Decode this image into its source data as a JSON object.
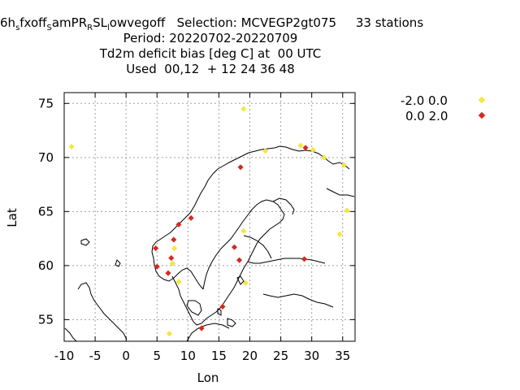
{
  "header": {
    "title_line1_prefix": "6h",
    "title_sub1": "s",
    "title_mid1": "fxoff",
    "title_sub2": "S",
    "title_mid2": "amPR",
    "title_sub3": "R",
    "title_mid3": "SL",
    "title_sub4": "l",
    "title_mid4": "owvegoff   Selection: MCVEGP2gt075     33 stations",
    "period": "Period: 20220702-20220709",
    "parameter": "Td2m deficit bias [deg C] at  00 UTC",
    "used": "Used  00,12  + 12 24 36 48"
  },
  "colors": {
    "low": "#f5e63a",
    "high": "#d42a1e",
    "grid": "#a0a0a0",
    "coast": "#000000"
  },
  "chart_data": {
    "type": "scatter",
    "xlabel": "Lon",
    "ylabel": "Lat",
    "xlim": [
      -10,
      37
    ],
    "ylim": [
      53,
      76
    ],
    "xticks": [
      -10,
      -5,
      0,
      5,
      10,
      15,
      20,
      25,
      30,
      35
    ],
    "yticks": [
      55,
      60,
      65,
      70,
      75
    ],
    "grid": true,
    "legend_position": "top-right",
    "series": [
      {
        "name": "-2.0 0.0",
        "color": "#f5e63a",
        "points": [
          [
            -8.8,
            71.0
          ],
          [
            19.0,
            74.5
          ],
          [
            22.5,
            70.6
          ],
          [
            28.2,
            71.1
          ],
          [
            30.2,
            70.7
          ],
          [
            32.0,
            70.0
          ],
          [
            35.2,
            69.3
          ],
          [
            35.7,
            65.1
          ],
          [
            34.5,
            62.9
          ],
          [
            19.0,
            63.2
          ],
          [
            7.8,
            61.6
          ],
          [
            7.5,
            60.2
          ],
          [
            8.5,
            58.5
          ],
          [
            19.3,
            58.4
          ],
          [
            7.0,
            53.7
          ]
        ]
      },
      {
        "name": "0.0 2.0",
        "color": "#d42a1e",
        "points": [
          [
            18.5,
            69.1
          ],
          [
            29.0,
            70.9
          ],
          [
            10.5,
            64.4
          ],
          [
            8.5,
            63.8
          ],
          [
            7.7,
            62.4
          ],
          [
            4.8,
            61.6
          ],
          [
            7.3,
            60.7
          ],
          [
            5.0,
            59.9
          ],
          [
            6.8,
            59.3
          ],
          [
            17.5,
            61.7
          ],
          [
            18.3,
            60.5
          ],
          [
            28.8,
            60.6
          ],
          [
            15.6,
            56.2
          ],
          [
            12.2,
            54.2
          ]
        ]
      }
    ]
  }
}
